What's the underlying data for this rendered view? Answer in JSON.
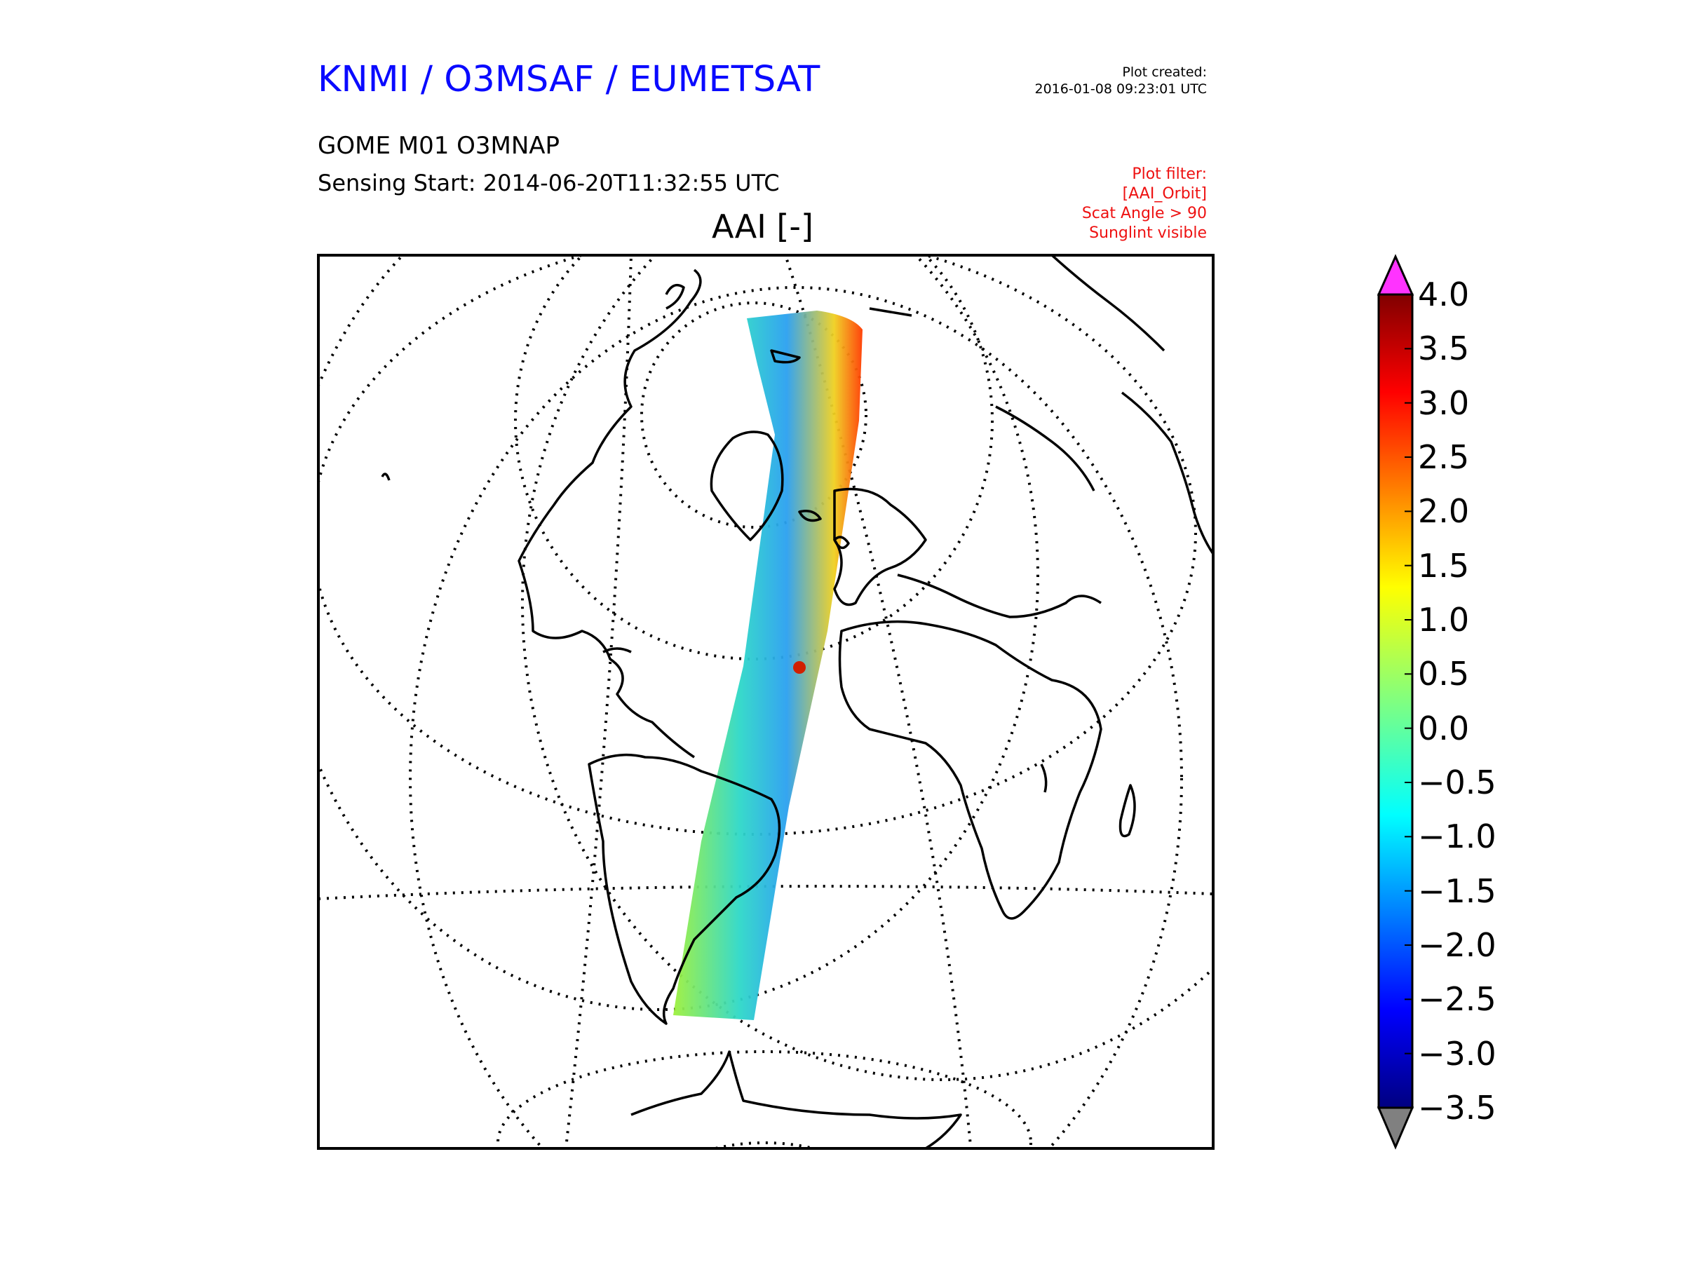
{
  "header": {
    "org_title": "KNMI / O3MSAF / EUMETSAT",
    "created_label": "Plot created:",
    "created_value": "2016-01-08 09:23:01 UTC",
    "product": "GOME M01 O3MNAP",
    "sensing_start": "Sensing Start: 2014-06-20T11:32:55 UTC",
    "filter_lines": [
      "Plot filter:",
      "[AAI_Orbit]",
      "Scat Angle > 90",
      "Sunglint visible"
    ]
  },
  "map": {
    "title": "AAI [-]",
    "projection": "orthographic"
  },
  "colorbar": {
    "min": -3.5,
    "max": 4.0,
    "tick_labels": [
      "4.0",
      "3.5",
      "3.0",
      "2.5",
      "2.0",
      "1.5",
      "1.0",
      "0.5",
      "0.0",
      "−0.5",
      "−1.0",
      "−1.5",
      "−2.0",
      "−2.5",
      "−3.0",
      "−3.5"
    ],
    "over_color": "#ff33ff",
    "under_color": "#808080",
    "colormap": "jet"
  }
}
